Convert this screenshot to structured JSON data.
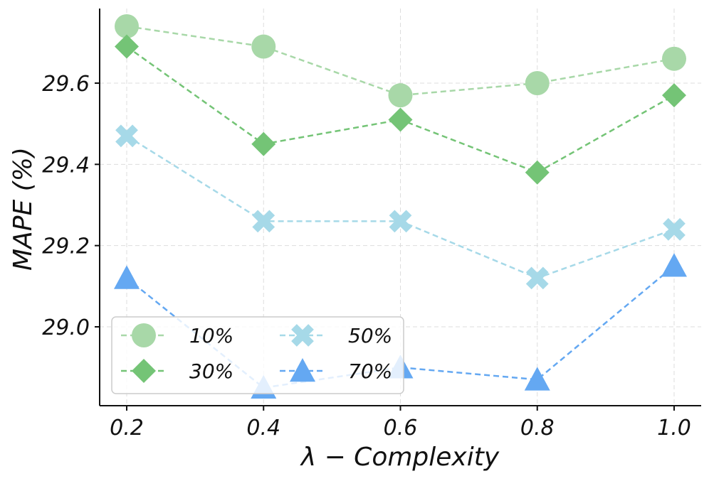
{
  "chart_data": {
    "type": "line",
    "xlabel": "λ − Complexity",
    "ylabel": "MAPE (%)",
    "x": [
      0.2,
      0.4,
      0.6,
      0.8,
      1.0
    ],
    "x_tick_labels": [
      "0.2",
      "0.4",
      "0.6",
      "0.8",
      "1.0"
    ],
    "y_ticks": [
      29.0,
      29.2,
      29.4,
      29.6
    ],
    "y_tick_labels": [
      "29.0",
      "29.2",
      "29.4",
      "29.6"
    ],
    "xlim": [
      0.12,
      1.08
    ],
    "ylim": [
      28.8,
      29.78
    ],
    "grid": true,
    "legend_position": "lower-left",
    "series": [
      {
        "name": "10%",
        "marker": "circle",
        "color": "#a8d8a8",
        "values": [
          29.74,
          29.69,
          29.57,
          29.6,
          29.66
        ]
      },
      {
        "name": "30%",
        "marker": "diamond",
        "color": "#74c476",
        "values": [
          29.69,
          29.45,
          29.51,
          29.38,
          29.57
        ]
      },
      {
        "name": "50%",
        "marker": "cross",
        "color": "#a6d9e8",
        "values": [
          29.47,
          29.26,
          29.26,
          29.12,
          29.24
        ]
      },
      {
        "name": "70%",
        "marker": "triangle",
        "color": "#64a8f2",
        "values": [
          29.12,
          28.85,
          28.9,
          28.87,
          29.15
        ]
      }
    ]
  }
}
